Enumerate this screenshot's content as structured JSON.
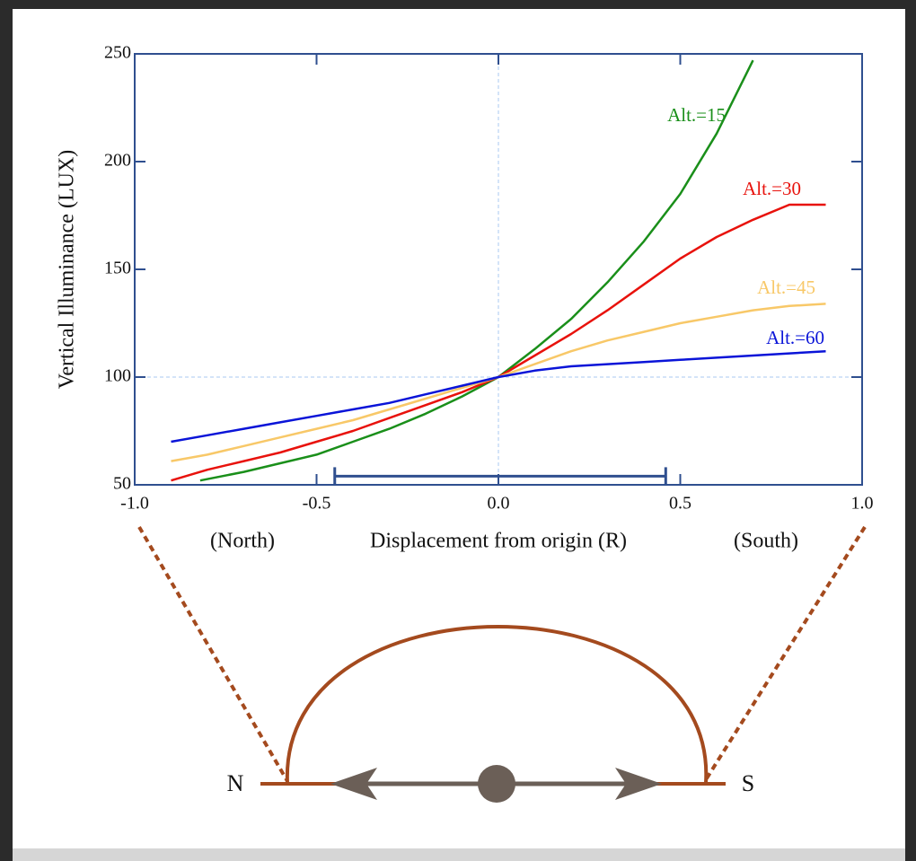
{
  "chart_data": {
    "type": "line",
    "x_label": "Displacement from origin (R)",
    "y_label": "Vertical Illuminance (LUX)",
    "x_annotations": [
      "(North)",
      "(South)"
    ],
    "xlim": [
      -1,
      1
    ],
    "ylim": [
      50,
      250
    ],
    "xticks": [
      {
        "value": -1,
        "label": "-1.0"
      },
      -0.5,
      {
        "value": 0,
        "label": "0.0"
      },
      0.5,
      {
        "value": 1,
        "label": "1.0"
      }
    ],
    "yticks": [
      50,
      100,
      150,
      200,
      250
    ],
    "reference_lines": {
      "x": 0,
      "y": 100
    },
    "interval": {
      "x": [
        -0.45,
        0.46
      ],
      "y": 54
    },
    "series": [
      {
        "name": "Alt.=15",
        "color": "#1a8f1a",
        "x": [
          -0.82,
          -0.7,
          -0.6,
          -0.5,
          -0.4,
          -0.3,
          -0.2,
          -0.1,
          0,
          0.1,
          0.2,
          0.3,
          0.4,
          0.5,
          0.6,
          0.7
        ],
        "values": [
          52,
          56,
          60,
          64,
          70,
          76,
          83,
          91,
          100,
          113,
          127,
          144,
          163,
          185,
          213,
          247
        ]
      },
      {
        "name": "Alt.=30",
        "color": "#e8120c",
        "x": [
          -0.9,
          -0.8,
          -0.7,
          -0.6,
          -0.5,
          -0.4,
          -0.3,
          -0.2,
          -0.1,
          0,
          0.1,
          0.2,
          0.3,
          0.4,
          0.5,
          0.6,
          0.7,
          0.8,
          0.9
        ],
        "values": [
          52,
          57,
          61,
          65,
          70,
          75,
          81,
          87,
          93,
          100,
          110,
          120,
          131,
          143,
          155,
          165,
          173,
          180,
          180
        ]
      },
      {
        "name": "Alt.=45",
        "color": "#f8c868",
        "x": [
          -0.9,
          -0.8,
          -0.7,
          -0.6,
          -0.5,
          -0.4,
          -0.3,
          -0.2,
          -0.1,
          0,
          0.1,
          0.2,
          0.3,
          0.4,
          0.5,
          0.6,
          0.7,
          0.8,
          0.9
        ],
        "values": [
          61,
          64,
          68,
          72,
          76,
          80,
          85,
          90,
          95,
          100,
          106,
          112,
          117,
          121,
          125,
          128,
          131,
          133,
          134
        ]
      },
      {
        "name": "Alt.=60",
        "color": "#0a14d8",
        "x": [
          -0.9,
          -0.8,
          -0.7,
          -0.6,
          -0.5,
          -0.4,
          -0.3,
          -0.2,
          -0.1,
          0,
          0.1,
          0.2,
          0.3,
          0.4,
          0.5,
          0.6,
          0.7,
          0.8,
          0.9
        ],
        "values": [
          70,
          73,
          76,
          79,
          82,
          85,
          88,
          92,
          96,
          100,
          103,
          105,
          106,
          107,
          108,
          109,
          110,
          111,
          112
        ]
      }
    ]
  },
  "diagram": {
    "labels": [
      "N",
      "S"
    ]
  }
}
